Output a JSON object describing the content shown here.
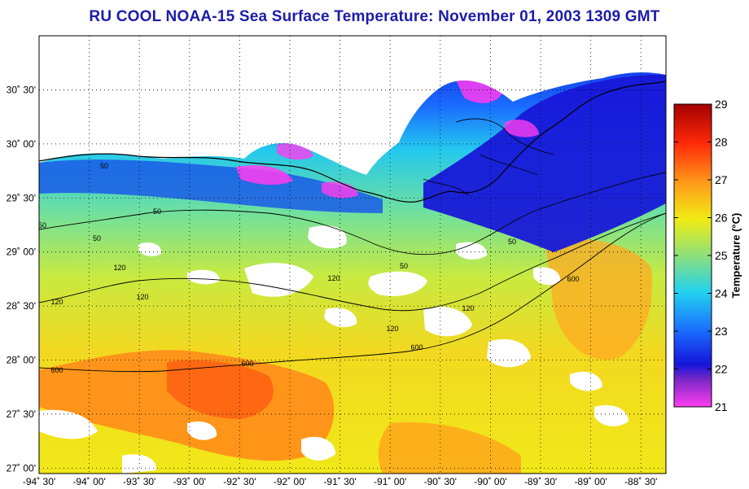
{
  "title": "RU COOL  NOAA-15  Sea Surface Temperature:  November 01, 2003 1309 GMT",
  "colorbar": {
    "label": "Temperature (°C)",
    "ticks": [
      "21",
      "22",
      "23",
      "24",
      "25",
      "26",
      "27",
      "28",
      "29"
    ],
    "min": 21,
    "max": 29,
    "colors": [
      "#ff3cf0",
      "#1414d8",
      "#1a6cff",
      "#23d2ee",
      "#8ee07a",
      "#f0ec14",
      "#ff9a1a",
      "#ff2a0a",
      "#a40000"
    ]
  },
  "axes": {
    "lon_ticks": [
      "-94˚ 30'",
      "-94˚ 00'",
      "-93˚ 30'",
      "-93˚ 00'",
      "-92˚ 30'",
      "-92˚ 00'",
      "-91˚ 30'",
      "-91˚ 00'",
      "-90˚ 30'",
      "-90˚ 00'",
      "-89˚ 30'",
      "-89˚ 00'",
      "-88˚ 30'"
    ],
    "lat_ticks": [
      "30˚ 30'",
      "30˚ 00'",
      "29˚ 30'",
      "29˚ 00'",
      "28˚ 30'",
      "28˚ 00'",
      "27˚ 30'",
      "27˚ 00'"
    ],
    "lon_values": [
      -94.5,
      -94.0,
      -93.5,
      -93.0,
      -92.5,
      -92.0,
      -91.5,
      -91.0,
      -90.5,
      -90.0,
      -89.5,
      -89.0,
      -88.5
    ],
    "lat_values": [
      30.5,
      30.0,
      29.5,
      29.0,
      28.5,
      28.0,
      27.5,
      27.0
    ],
    "lon_range": [
      -94.5,
      -88.25
    ],
    "lat_range": [
      26.95,
      31.0
    ],
    "grid": "dotted"
  },
  "contours": {
    "labels": [
      "50",
      "50",
      "50",
      "50",
      "50",
      "50",
      "120",
      "120",
      "120",
      "120",
      "120",
      "120",
      "600",
      "600",
      "600",
      "600"
    ]
  }
}
